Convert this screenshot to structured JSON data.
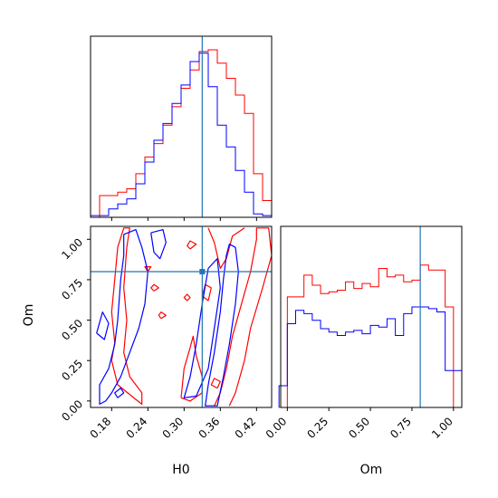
{
  "colors": {
    "red_series": "#ff0000",
    "blue_series": "#0000ff",
    "truth_line": "#1f77b4"
  },
  "chart_data": [
    {
      "type": "histogram",
      "panel": "H0 marginal (top-left)",
      "x_var": "H0",
      "xlim": [
        0.145,
        0.445
      ],
      "xticks": [
        0.18,
        0.24,
        0.3,
        0.36,
        0.42
      ],
      "truth_x": 0.33,
      "bins": [
        0.145,
        0.16,
        0.175,
        0.19,
        0.205,
        0.22,
        0.235,
        0.25,
        0.265,
        0.28,
        0.295,
        0.31,
        0.325,
        0.34,
        0.355,
        0.37,
        0.385,
        0.4,
        0.415,
        0.43,
        0.445
      ],
      "series": [
        {
          "color_key": "red_series",
          "values": [
            0.0,
            0.13,
            0.13,
            0.15,
            0.17,
            0.26,
            0.36,
            0.44,
            0.55,
            0.66,
            0.77,
            0.88,
            0.99,
            1.0,
            0.92,
            0.83,
            0.73,
            0.62,
            0.26,
            0.1
          ]
        },
        {
          "color_key": "blue_series",
          "values": [
            0.01,
            0.01,
            0.05,
            0.08,
            0.11,
            0.2,
            0.33,
            0.46,
            0.56,
            0.68,
            0.79,
            0.93,
            0.98,
            0.78,
            0.55,
            0.42,
            0.28,
            0.15,
            0.02,
            0.01
          ]
        }
      ]
    },
    {
      "type": "histogram",
      "panel": "Om marginal (bottom-right)",
      "x_var": "Om",
      "xlabel": "Om",
      "xlim": [
        -0.04,
        1.05
      ],
      "xticks": [
        0.0,
        0.25,
        0.5,
        0.75,
        1.0
      ],
      "tick_labels": [
        "0.00",
        "0.25",
        "0.50",
        "0.75",
        "1.00"
      ],
      "truth_x": 0.8,
      "bins": [
        -0.05,
        0.0,
        0.05,
        0.1,
        0.15,
        0.2,
        0.25,
        0.3,
        0.35,
        0.4,
        0.45,
        0.5,
        0.55,
        0.6,
        0.65,
        0.7,
        0.75,
        0.8,
        0.85,
        0.9,
        0.95,
        1.0,
        1.05
      ],
      "series": [
        {
          "color_key": "red_series",
          "values": [
            0.0,
            0.66,
            0.66,
            0.79,
            0.73,
            0.68,
            0.69,
            0.7,
            0.75,
            0.71,
            0.74,
            0.72,
            0.83,
            0.78,
            0.79,
            0.75,
            0.76,
            0.85,
            0.82,
            0.82,
            0.6,
            0.0
          ]
        },
        {
          "color_key": "blue_series",
          "values": [
            0.13,
            0.5,
            0.58,
            0.56,
            0.52,
            0.47,
            0.45,
            0.43,
            0.45,
            0.46,
            0.44,
            0.49,
            0.48,
            0.53,
            0.43,
            0.56,
            0.6,
            0.6,
            0.59,
            0.57,
            0.22,
            0.22
          ]
        }
      ]
    },
    {
      "type": "contour",
      "panel": "H0 vs Om joint (bottom-left)",
      "xlabel": "H0",
      "ylabel": "Om",
      "xlim": [
        0.145,
        0.445
      ],
      "ylim": [
        -0.04,
        1.08
      ],
      "xticks": [
        0.18,
        0.24,
        0.3,
        0.36,
        0.42
      ],
      "x_tick_labels": [
        "0.18",
        "0.24",
        "0.30",
        "0.36",
        "0.42"
      ],
      "yticks": [
        0.0,
        0.25,
        0.5,
        0.75,
        1.0
      ],
      "y_tick_labels": [
        "0.00",
        "0.25",
        "0.50",
        "0.75",
        "1.00"
      ],
      "truth_point": [
        0.33,
        0.8
      ],
      "contours": [
        {
          "color_key": "red_series",
          "points": [
            [
              0.185,
              0.36
            ],
            [
              0.18,
              0.25
            ],
            [
              0.19,
              0.1
            ],
            [
              0.22,
              0.01
            ],
            [
              0.23,
              -0.02
            ],
            [
              0.23,
              0.05
            ],
            [
              0.21,
              0.15
            ],
            [
              0.2,
              0.3
            ],
            [
              0.205,
              0.5
            ],
            [
              0.2,
              0.7
            ],
            [
              0.205,
              0.95
            ],
            [
              0.21,
              1.07
            ],
            [
              0.2,
              1.07
            ],
            [
              0.19,
              0.95
            ],
            [
              0.185,
              0.75
            ],
            [
              0.18,
              0.55
            ],
            [
              0.185,
              0.36
            ]
          ]
        },
        {
          "color_key": "red_series",
          "points": [
            [
              0.35,
              -0.03
            ],
            [
              0.36,
              0.05
            ],
            [
              0.37,
              0.2
            ],
            [
              0.38,
              0.4
            ],
            [
              0.395,
              0.6
            ],
            [
              0.41,
              0.8
            ],
            [
              0.42,
              1.0
            ],
            [
              0.42,
              1.07
            ],
            [
              0.44,
              1.07
            ],
            [
              0.445,
              0.9
            ],
            [
              0.43,
              0.7
            ],
            [
              0.41,
              0.45
            ],
            [
              0.4,
              0.25
            ],
            [
              0.385,
              0.05
            ],
            [
              0.375,
              -0.03
            ]
          ]
        },
        {
          "color_key": "red_series",
          "points": [
            [
              0.295,
              0.02
            ],
            [
              0.31,
              0.0
            ],
            [
              0.33,
              0.05
            ],
            [
              0.33,
              0.15
            ],
            [
              0.32,
              0.28
            ],
            [
              0.315,
              0.4
            ],
            [
              0.31,
              0.33
            ],
            [
              0.3,
              0.2
            ],
            [
              0.295,
              0.02
            ]
          ]
        },
        {
          "color_key": "red_series",
          "points": [
            [
              0.34,
              1.07
            ],
            [
              0.35,
              0.98
            ],
            [
              0.36,
              0.82
            ],
            [
              0.37,
              0.88
            ],
            [
              0.38,
              1.02
            ],
            [
              0.4,
              1.07
            ]
          ]
        },
        {
          "color_key": "red_series",
          "points": [
            [
              0.31,
              0.94
            ],
            [
              0.32,
              0.97
            ],
            [
              0.31,
              0.99
            ],
            [
              0.305,
              0.96
            ],
            [
              0.31,
              0.94
            ]
          ]
        },
        {
          "color_key": "red_series",
          "points": [
            [
              0.34,
              0.62
            ],
            [
              0.345,
              0.7
            ],
            [
              0.335,
              0.72
            ],
            [
              0.33,
              0.65
            ],
            [
              0.34,
              0.62
            ]
          ]
        },
        {
          "color_key": "red_series",
          "points": [
            [
              0.24,
              0.8
            ],
            [
              0.245,
              0.83
            ],
            [
              0.235,
              0.83
            ],
            [
              0.24,
              0.8
            ]
          ]
        },
        {
          "color_key": "red_series",
          "points": [
            [
              0.25,
              0.68
            ],
            [
              0.258,
              0.7
            ],
            [
              0.25,
              0.72
            ],
            [
              0.245,
              0.7
            ],
            [
              0.25,
              0.68
            ]
          ]
        },
        {
          "color_key": "red_series",
          "points": [
            [
              0.262,
              0.51
            ],
            [
              0.27,
              0.53
            ],
            [
              0.262,
              0.55
            ],
            [
              0.258,
              0.53
            ],
            [
              0.262,
              0.51
            ]
          ]
        },
        {
          "color_key": "red_series",
          "points": [
            [
              0.305,
              0.62
            ],
            [
              0.31,
              0.64
            ],
            [
              0.305,
              0.66
            ],
            [
              0.3,
              0.64
            ],
            [
              0.305,
              0.62
            ]
          ]
        },
        {
          "color_key": "red_series",
          "points": [
            [
              0.355,
              0.08
            ],
            [
              0.36,
              0.12
            ],
            [
              0.35,
              0.14
            ],
            [
              0.345,
              0.1
            ],
            [
              0.355,
              0.08
            ]
          ]
        },
        {
          "color_key": "blue_series",
          "points": [
            [
              0.37,
              0.9
            ],
            [
              0.365,
              0.75
            ],
            [
              0.36,
              0.55
            ],
            [
              0.35,
              0.3
            ],
            [
              0.34,
              0.1
            ],
            [
              0.335,
              -0.03
            ],
            [
              0.355,
              -0.03
            ],
            [
              0.365,
              0.15
            ],
            [
              0.375,
              0.35
            ],
            [
              0.385,
              0.6
            ],
            [
              0.39,
              0.8
            ],
            [
              0.385,
              0.95
            ],
            [
              0.375,
              0.97
            ],
            [
              0.37,
              0.9
            ]
          ]
        },
        {
          "color_key": "blue_series",
          "points": [
            [
              0.34,
              0.82
            ],
            [
              0.33,
              0.6
            ],
            [
              0.32,
              0.35
            ],
            [
              0.31,
              0.15
            ],
            [
              0.3,
              0.02
            ],
            [
              0.32,
              0.03
            ],
            [
              0.34,
              0.2
            ],
            [
              0.35,
              0.45
            ],
            [
              0.36,
              0.7
            ],
            [
              0.355,
              0.88
            ],
            [
              0.34,
              0.82
            ]
          ]
        },
        {
          "color_key": "blue_series",
          "points": [
            [
              0.2,
              1.03
            ],
            [
              0.22,
              1.06
            ],
            [
              0.23,
              0.95
            ],
            [
              0.24,
              0.8
            ],
            [
              0.235,
              0.6
            ],
            [
              0.225,
              0.45
            ],
            [
              0.21,
              0.3
            ],
            [
              0.195,
              0.15
            ],
            [
              0.18,
              0.05
            ],
            [
              0.17,
              0.0
            ],
            [
              0.16,
              -0.02
            ],
            [
              0.16,
              0.1
            ],
            [
              0.175,
              0.2
            ],
            [
              0.185,
              0.35
            ],
            [
              0.19,
              0.5
            ],
            [
              0.195,
              0.75
            ],
            [
              0.2,
              0.9
            ],
            [
              0.2,
              1.03
            ]
          ]
        },
        {
          "color_key": "blue_series",
          "points": [
            [
              0.245,
              1.04
            ],
            [
              0.265,
              1.06
            ],
            [
              0.27,
              0.98
            ],
            [
              0.26,
              0.88
            ],
            [
              0.25,
              0.92
            ],
            [
              0.245,
              1.04
            ]
          ]
        },
        {
          "color_key": "blue_series",
          "points": [
            [
              0.155,
              0.42
            ],
            [
              0.165,
              0.55
            ],
            [
              0.175,
              0.48
            ],
            [
              0.168,
              0.38
            ],
            [
              0.155,
              0.42
            ]
          ]
        },
        {
          "color_key": "blue_series",
          "points": [
            [
              0.19,
              0.02
            ],
            [
              0.2,
              0.05
            ],
            [
              0.195,
              0.08
            ],
            [
              0.185,
              0.05
            ],
            [
              0.19,
              0.02
            ]
          ]
        }
      ]
    }
  ]
}
